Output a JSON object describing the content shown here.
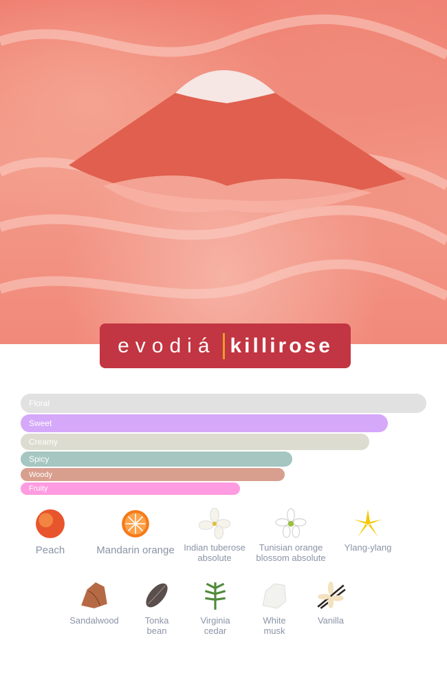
{
  "brand": {
    "name": "evodiá",
    "product": "killirose",
    "box_color": "#c23542",
    "divider_color": "#e6a028"
  },
  "accords": [
    {
      "label": "Floral",
      "strength": 100,
      "color": "#e1e1e1"
    },
    {
      "label": "Sweet",
      "strength": 90.5,
      "color": "#d5a8fa"
    },
    {
      "label": "Creamy",
      "strength": 86,
      "color": "#dcdcd0"
    },
    {
      "label": "Spicy",
      "strength": 67,
      "color": "#a5c6c1"
    },
    {
      "label": "Woody",
      "strength": 65,
      "color": "#d89e8e"
    },
    {
      "label": "Fruity",
      "strength": 54,
      "color": "#ff9be0"
    }
  ],
  "notes_row1": [
    {
      "label": "Peach",
      "icon": "peach-icon"
    },
    {
      "label": "Mandarin orange",
      "icon": "mandarin-icon"
    },
    {
      "label": "Indian tuberose absolute",
      "icon": "tuberose-icon"
    },
    {
      "label": "Tunisian orange blossom absolute",
      "icon": "orange-blossom-icon"
    },
    {
      "label": "Ylang-ylang",
      "icon": "ylang-ylang-icon"
    }
  ],
  "notes_row2": [
    {
      "label": "Sandalwood",
      "icon": "sandalwood-icon"
    },
    {
      "label": "Tonka bean",
      "icon": "tonka-bean-icon"
    },
    {
      "label": "Virginia cedar",
      "icon": "cedar-icon"
    },
    {
      "label": "White musk",
      "icon": "musk-icon"
    },
    {
      "label": "Vanilla",
      "icon": "vanilla-icon"
    }
  ]
}
